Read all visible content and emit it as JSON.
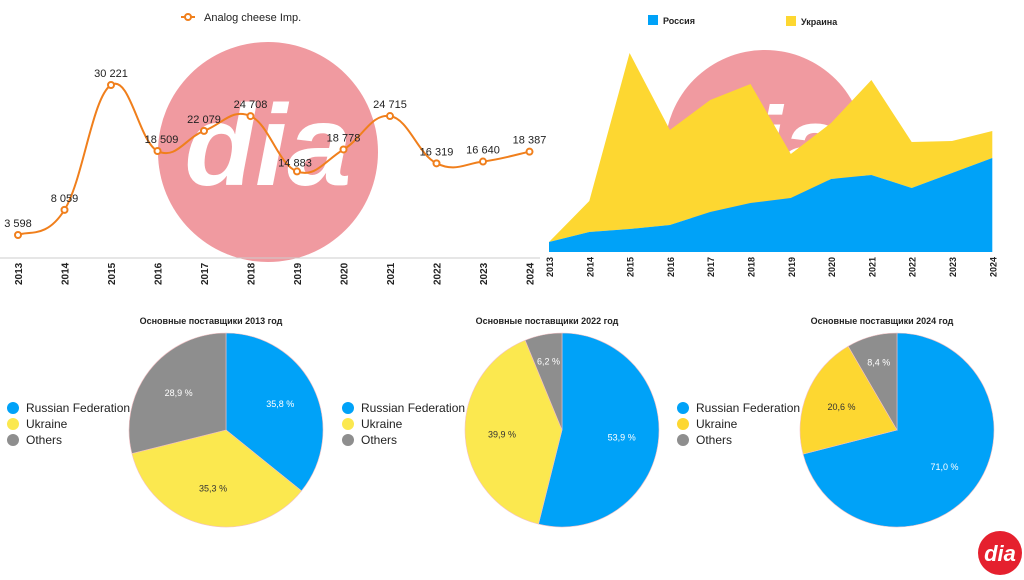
{
  "colors": {
    "orange": "#f07f1c",
    "blue": "#00a2f8",
    "yellow": "#fbe84f",
    "yellow_dark": "#fdd731",
    "gray": "#8e8e8e",
    "pink": "#f09aa0",
    "logo_red": "#e5202e"
  },
  "logo_text": "dia",
  "chart_data": [
    {
      "type": "line",
      "legend": "Analog cheese Imp.",
      "legend_placement": "top",
      "x": [
        "2013",
        "2014",
        "2015",
        "2016",
        "2017",
        "2018",
        "2019",
        "2020",
        "2021",
        "2022",
        "2023",
        "2024"
      ],
      "values": [
        3598,
        8059,
        30221,
        18509,
        22079,
        24708,
        14883,
        18778,
        24715,
        16319,
        16640,
        18387
      ],
      "labels": [
        "3 598",
        "8 059",
        "30 221",
        "18 509",
        "22 079",
        "24 708",
        "14 883",
        "18 778",
        "24 715",
        "16 319",
        "16 640",
        "18 387"
      ]
    },
    {
      "type": "area",
      "stacked": true,
      "legend_placement": "top",
      "x": [
        "2013",
        "2014",
        "2015",
        "2016",
        "2017",
        "2018",
        "2019",
        "2020",
        "2021",
        "2022",
        "2023",
        "2024"
      ],
      "series": [
        {
          "name": "Россия",
          "values": [
            1500,
            3000,
            3450,
            4050,
            6000,
            7350,
            8100,
            10950,
            11550,
            9600,
            11850,
            14100
          ]
        },
        {
          "name": "Украина",
          "values": [
            0,
            4650,
            26400,
            14250,
            16800,
            17850,
            6600,
            8400,
            14250,
            6900,
            4800,
            4050
          ]
        }
      ]
    },
    {
      "type": "pie",
      "title": "Основные поставщики 2013 год",
      "categories": [
        "Russian Federation",
        "Ukraine",
        "Others"
      ],
      "values": [
        35.8,
        35.3,
        28.9
      ],
      "labels": [
        "35,8 %",
        "35,3 %",
        "28,9 %"
      ]
    },
    {
      "type": "pie",
      "title": "Основные поставщики 2022 год",
      "categories": [
        "Russian Federation",
        "Ukraine",
        "Others"
      ],
      "values": [
        53.9,
        39.9,
        6.2
      ],
      "labels": [
        "53,9 %",
        "39,9 %",
        "6,2 %"
      ]
    },
    {
      "type": "pie",
      "title": "Основные поставщики 2024 год",
      "categories": [
        "Russian Federation",
        "Ukraine",
        "Others"
      ],
      "values": [
        71.0,
        20.6,
        8.4
      ],
      "labels": [
        "71,0 %",
        "20,6 %",
        "8,4 %"
      ]
    }
  ]
}
